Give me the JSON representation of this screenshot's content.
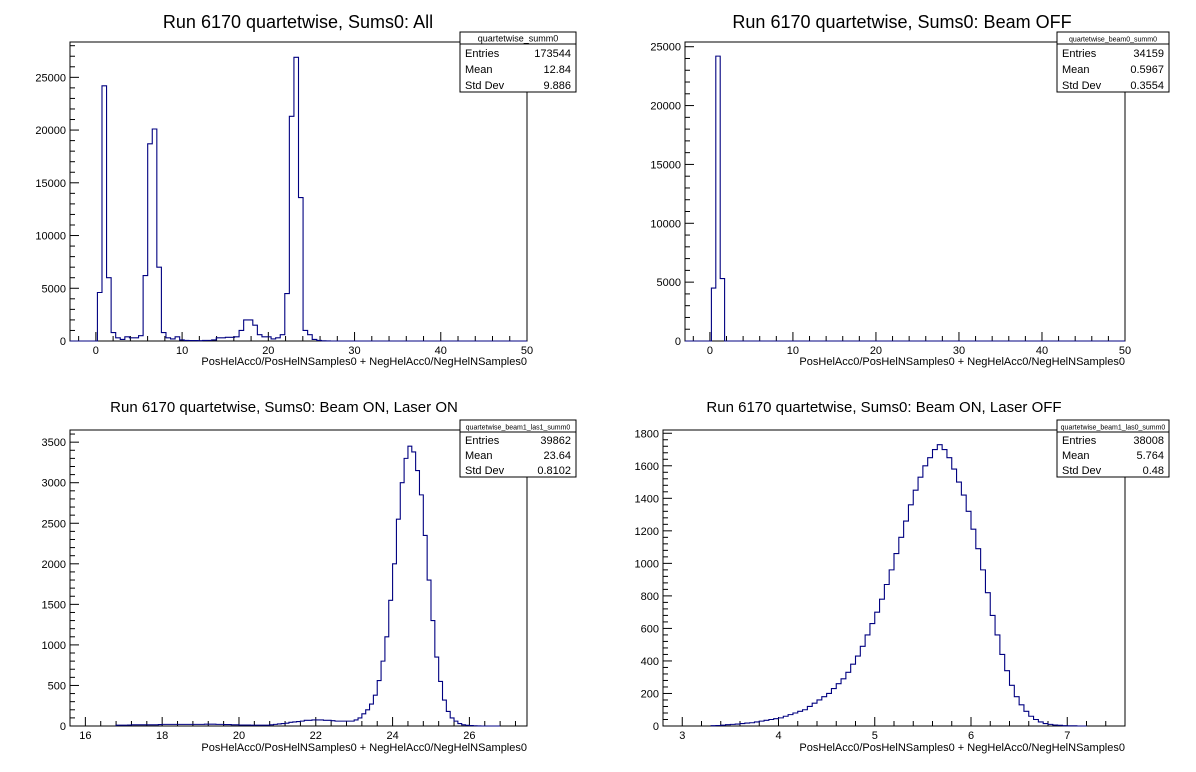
{
  "chart_data": [
    {
      "type": "histogram",
      "title": "Run 6170 quartetwise, Sums0: All",
      "xlabel": "PosHelAcc0/PosHelNSamples0 + NegHelAcc0/NegHelNSamples0",
      "xlim": [
        -3,
        50
      ],
      "ylim": [
        0,
        28350
      ],
      "xticks": [
        0,
        10,
        20,
        30,
        40,
        50
      ],
      "yticks": [
        0,
        5000,
        10000,
        15000,
        20000,
        25000
      ],
      "stats": {
        "name": "quartetwise_summ0",
        "rows": [
          {
            "label": "Entries",
            "value": "173544"
          },
          {
            "label": "Mean",
            "value": "12.84"
          },
          {
            "label": "Std Dev",
            "value": "9.886"
          }
        ]
      },
      "bin_start": -3,
      "bin_width": 0.53,
      "values": [
        0,
        0,
        0,
        0,
        0,
        0,
        4600,
        24200,
        6000,
        800,
        300,
        150,
        400,
        300,
        300,
        500,
        6200,
        18700,
        20100,
        7000,
        800,
        300,
        200,
        400,
        100,
        50,
        40,
        40,
        30,
        50,
        60,
        100,
        300,
        300,
        350,
        350,
        400,
        1000,
        2000,
        2000,
        1500,
        600,
        400,
        400,
        200,
        300,
        600,
        4500,
        21300,
        26900,
        13600,
        1000,
        600,
        150,
        50,
        20,
        10,
        0,
        0,
        0,
        0,
        0,
        0,
        0,
        0,
        0,
        0,
        0,
        0,
        0,
        0,
        0,
        0,
        0,
        0,
        0,
        0,
        0,
        0,
        0,
        0,
        0,
        0,
        0,
        0,
        0,
        0,
        0,
        0,
        0,
        0,
        0,
        0,
        0,
        0,
        0,
        0,
        0,
        0,
        0
      ]
    },
    {
      "type": "histogram",
      "title": "Run 6170 quartetwise, Sums0: Beam OFF",
      "xlabel": "PosHelAcc0/PosHelNSamples0 + NegHelAcc0/NegHelNSamples0",
      "xlim": [
        -3,
        50
      ],
      "ylim": [
        0,
        25400
      ],
      "xticks": [
        0,
        10,
        20,
        30,
        40,
        50
      ],
      "yticks": [
        0,
        5000,
        10000,
        15000,
        20000,
        25000
      ],
      "stats": {
        "name": "quartetwise_beam0_summ0",
        "rows": [
          {
            "label": "Entries",
            "value": "34159"
          },
          {
            "label": "Mean",
            "value": "0.5967"
          },
          {
            "label": "Std Dev",
            "value": "0.3554"
          }
        ]
      },
      "bin_start": -3,
      "bin_width": 0.53,
      "values": [
        0,
        0,
        0,
        0,
        0,
        0,
        4500,
        24200,
        5300,
        0,
        0,
        0,
        0,
        0,
        0,
        0,
        0,
        0,
        0,
        0,
        0,
        0,
        0,
        0,
        0,
        0,
        0,
        0,
        0,
        0,
        0,
        0,
        0,
        0,
        0,
        0,
        0,
        0,
        0,
        0,
        0,
        0,
        0,
        0,
        0,
        0,
        0,
        0,
        0,
        0,
        0,
        0,
        0,
        0,
        0,
        0,
        0,
        0,
        0,
        0,
        0,
        0,
        0,
        0,
        0,
        0,
        0,
        0,
        0,
        0,
        0,
        0,
        0,
        0,
        0,
        0,
        0,
        0,
        0,
        0,
        0,
        0,
        0,
        0,
        0,
        0,
        0,
        0,
        0,
        0,
        0,
        0,
        0,
        0,
        0,
        0,
        0,
        0,
        0,
        0
      ]
    },
    {
      "type": "histogram",
      "title": "Run 6170 quartetwise, Sums0: Beam ON, Laser ON",
      "xlabel": "PosHelAcc0/PosHelNSamples0 + NegHelAcc0/NegHelNSamples0",
      "xlim": [
        15.6,
        27.5
      ],
      "ylim": [
        0,
        3650
      ],
      "xticks": [
        16,
        18,
        20,
        22,
        24,
        26
      ],
      "yticks": [
        0,
        500,
        1000,
        1500,
        2000,
        2500,
        3000,
        3500
      ],
      "stats": {
        "name": "quartetwise_beam1_las1_summ0",
        "rows": [
          {
            "label": "Entries",
            "value": "39862"
          },
          {
            "label": "Mean",
            "value": "23.64"
          },
          {
            "label": "Std Dev",
            "value": "0.8102"
          }
        ]
      },
      "bin_start": 16.8,
      "bin_width": 0.1,
      "values": [
        10,
        10,
        10,
        12,
        15,
        15,
        15,
        15,
        15,
        15,
        15,
        18,
        20,
        20,
        20,
        20,
        20,
        20,
        20,
        20,
        20,
        20,
        20,
        22,
        22,
        22,
        20,
        20,
        18,
        18,
        15,
        15,
        12,
        12,
        12,
        10,
        10,
        10,
        10,
        10,
        15,
        20,
        25,
        30,
        35,
        45,
        50,
        55,
        60,
        70,
        70,
        75,
        75,
        75,
        70,
        70,
        65,
        60,
        60,
        60,
        60,
        60,
        75,
        100,
        150,
        200,
        270,
        380,
        560,
        800,
        1100,
        1550,
        2000,
        2550,
        3000,
        3300,
        3450,
        3380,
        3150,
        2850,
        2350,
        1800,
        1300,
        850,
        550,
        320,
        180,
        100,
        60,
        30,
        15,
        8,
        5,
        3,
        1,
        0,
        0,
        0,
        0,
        0
      ]
    },
    {
      "type": "histogram",
      "title": "Run 6170 quartetwise, Sums0: Beam ON, Laser OFF",
      "xlabel": "PosHelAcc0/PosHelNSamples0 + NegHelAcc0/NegHelNSamples0",
      "xlim": [
        2.8,
        7.6
      ],
      "ylim": [
        0,
        1820
      ],
      "xticks": [
        3,
        4,
        5,
        6,
        7
      ],
      "yticks": [
        0,
        200,
        400,
        600,
        800,
        1000,
        1200,
        1400,
        1600,
        1800
      ],
      "stats": {
        "name": "quartetwise_beam1_las0_summ0",
        "rows": [
          {
            "label": "Entries",
            "value": "38008"
          },
          {
            "label": "Mean",
            "value": "5.764"
          },
          {
            "label": "Std Dev",
            "value": "0.48"
          }
        ]
      },
      "bin_start": 3.3,
      "bin_width": 0.05,
      "values": [
        2,
        3,
        5,
        8,
        10,
        12,
        15,
        18,
        20,
        25,
        30,
        35,
        40,
        45,
        50,
        60,
        70,
        80,
        90,
        100,
        120,
        140,
        160,
        180,
        200,
        230,
        260,
        290,
        330,
        380,
        430,
        490,
        560,
        630,
        700,
        780,
        870,
        960,
        1060,
        1160,
        1260,
        1360,
        1450,
        1530,
        1600,
        1650,
        1700,
        1730,
        1700,
        1650,
        1580,
        1500,
        1420,
        1320,
        1210,
        1090,
        960,
        820,
        680,
        560,
        440,
        340,
        250,
        180,
        130,
        90,
        60,
        40,
        25,
        15,
        10,
        6,
        4,
        2,
        1,
        1,
        0,
        0
      ]
    }
  ]
}
